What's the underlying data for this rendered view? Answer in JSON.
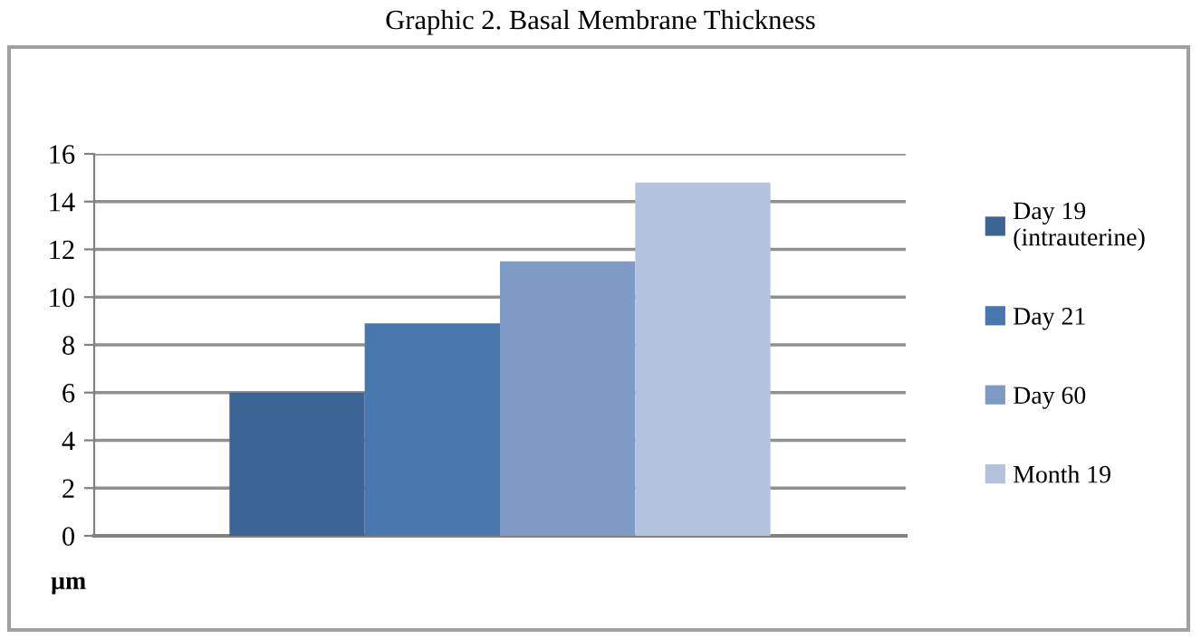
{
  "chart_data": {
    "type": "bar",
    "title": "Graphic 2. Basal Membrane Thickness",
    "ylabel": "µm",
    "categories": [
      null
    ],
    "series": [
      {
        "name": "Day 19\n(intrauterine)",
        "color": "#3c6595",
        "values": [
          6.0
        ]
      },
      {
        "name": "Day 21",
        "color": "#4877ae",
        "values": [
          8.9
        ]
      },
      {
        "name": "Day 60",
        "color": "#7e9bc6",
        "values": [
          11.5
        ]
      },
      {
        "name": "Month 19",
        "color": "#b3c3dd",
        "values": [
          14.8
        ]
      }
    ],
    "ylim": [
      0,
      16
    ],
    "yticks": [
      0,
      2,
      4,
      6,
      8,
      10,
      12,
      14,
      16
    ],
    "grid": "y",
    "legend": "right"
  }
}
